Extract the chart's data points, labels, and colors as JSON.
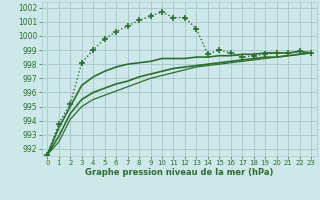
{
  "bg_color": "#cce8e8",
  "grid_color": "#aacccc",
  "line_color": "#2d6e2d",
  "xlabel": "Graphe pression niveau de la mer (hPa)",
  "ylim": [
    991.5,
    1002.4
  ],
  "xlim": [
    -0.5,
    23.5
  ],
  "yticks": [
    992,
    993,
    994,
    995,
    996,
    997,
    998,
    999,
    1000,
    1001,
    1002
  ],
  "xticks": [
    0,
    1,
    2,
    3,
    4,
    5,
    6,
    7,
    8,
    9,
    10,
    11,
    12,
    13,
    14,
    15,
    16,
    17,
    18,
    19,
    20,
    21,
    22,
    23
  ],
  "series": [
    {
      "x": [
        0,
        1,
        2,
        3,
        4,
        5,
        6,
        7,
        8,
        9,
        10,
        11,
        12,
        13,
        14,
        15,
        16,
        17,
        18,
        19,
        20,
        21,
        22,
        23
      ],
      "y": [
        991.6,
        993.8,
        995.2,
        998.1,
        999.0,
        999.8,
        1000.3,
        1000.7,
        1001.1,
        1001.4,
        1001.7,
        1001.3,
        1001.3,
        1000.5,
        998.7,
        999.0,
        998.8,
        998.5,
        998.6,
        998.7,
        998.8,
        998.8,
        998.9,
        998.8
      ],
      "style": ":",
      "marker": "+",
      "markersize": 4,
      "linewidth": 1.0,
      "markeredgewidth": 1.2
    },
    {
      "x": [
        0,
        1,
        2,
        3,
        4,
        5,
        6,
        7,
        8,
        9,
        10,
        11,
        12,
        13,
        14,
        15,
        16,
        17,
        18,
        19,
        20,
        21,
        22,
        23
      ],
      "y": [
        991.6,
        993.5,
        995.0,
        996.5,
        997.1,
        997.5,
        997.8,
        998.0,
        998.1,
        998.2,
        998.4,
        998.4,
        998.4,
        998.5,
        998.5,
        998.6,
        998.6,
        998.7,
        998.7,
        998.8,
        998.8,
        998.8,
        998.9,
        998.8
      ],
      "style": "-",
      "marker": null,
      "markersize": 0,
      "linewidth": 1.2,
      "markeredgewidth": 0
    },
    {
      "x": [
        0,
        1,
        2,
        3,
        4,
        5,
        6,
        7,
        8,
        9,
        10,
        11,
        12,
        13,
        14,
        15,
        16,
        17,
        18,
        19,
        20,
        21,
        22,
        23
      ],
      "y": [
        991.6,
        992.9,
        994.5,
        995.5,
        996.0,
        996.3,
        996.6,
        996.8,
        997.1,
        997.3,
        997.5,
        997.7,
        997.8,
        997.9,
        998.0,
        998.1,
        998.2,
        998.3,
        998.4,
        998.5,
        998.5,
        998.6,
        998.7,
        998.8
      ],
      "style": "-",
      "marker": null,
      "markersize": 0,
      "linewidth": 1.2,
      "markeredgewidth": 0
    },
    {
      "x": [
        0,
        1,
        2,
        3,
        4,
        5,
        6,
        7,
        8,
        9,
        10,
        11,
        12,
        13,
        14,
        15,
        16,
        17,
        18,
        19,
        20,
        21,
        22,
        23
      ],
      "y": [
        991.6,
        992.5,
        994.1,
        995.0,
        995.5,
        995.8,
        996.1,
        996.4,
        996.7,
        997.0,
        997.2,
        997.4,
        997.6,
        997.8,
        997.9,
        998.0,
        998.1,
        998.2,
        998.3,
        998.4,
        998.5,
        998.6,
        998.7,
        998.8
      ],
      "style": "-",
      "marker": null,
      "markersize": 0,
      "linewidth": 0.9,
      "markeredgewidth": 0
    }
  ]
}
